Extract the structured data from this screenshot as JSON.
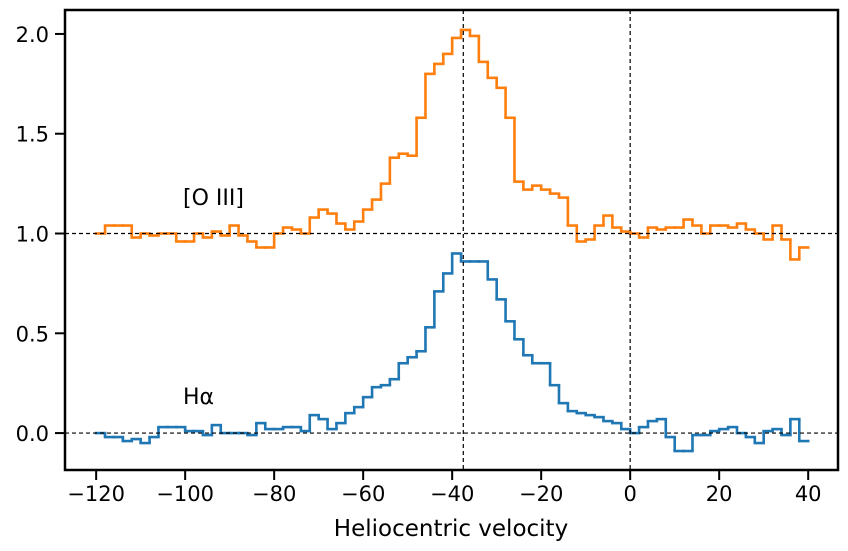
{
  "chart_data": {
    "type": "step",
    "xlabel": "Heliocentric velocity",
    "x": [
      -119,
      -117,
      -115,
      -113,
      -111,
      -109,
      -107,
      -105,
      -103,
      -101,
      -99,
      -97,
      -95,
      -93,
      -91,
      -89,
      -87,
      -85,
      -83,
      -81,
      -79,
      -77,
      -75,
      -73,
      -71,
      -69,
      -67,
      -65,
      -63,
      -61,
      -59,
      -57,
      -55,
      -53,
      -51,
      -49,
      -47,
      -45,
      -43,
      -41,
      -39,
      -37,
      -35,
      -33,
      -31,
      -29,
      -27,
      -25,
      -23,
      -21,
      -19,
      -17,
      -15,
      -13,
      -11,
      -9,
      -7,
      -5,
      -3,
      -1,
      1,
      3,
      5,
      7,
      9,
      11,
      13,
      15,
      17,
      19,
      21,
      23,
      25,
      27,
      29,
      31,
      33,
      35,
      37,
      39
    ],
    "series": [
      {
        "name": "[O III]",
        "color": "#ff7f0e",
        "values": [
          1.0,
          1.04,
          1.04,
          1.04,
          0.98,
          1.0,
          0.99,
          1.0,
          1.0,
          0.96,
          0.96,
          1.0,
          0.98,
          1.01,
          0.99,
          1.04,
          0.99,
          0.96,
          0.93,
          0.93,
          1.0,
          1.03,
          1.02,
          1.0,
          1.08,
          1.12,
          1.1,
          1.05,
          1.02,
          1.06,
          1.12,
          1.17,
          1.25,
          1.38,
          1.4,
          1.39,
          1.58,
          1.8,
          1.85,
          1.9,
          1.98,
          2.02,
          1.99,
          1.86,
          1.78,
          1.73,
          1.58,
          1.26,
          1.22,
          1.24,
          1.22,
          1.2,
          1.18,
          1.04,
          0.96,
          0.97,
          1.04,
          1.09,
          1.03,
          1.01,
          1.0,
          0.98,
          1.03,
          1.02,
          1.03,
          1.03,
          1.07,
          1.04,
          1.0,
          1.04,
          1.04,
          1.03,
          1.05,
          1.02,
          1.0,
          0.97,
          1.04,
          0.97,
          0.87,
          0.93
        ]
      },
      {
        "name": "Hα",
        "color": "#1f77b4",
        "values": [
          0.0,
          -0.02,
          -0.02,
          -0.04,
          -0.03,
          -0.05,
          -0.02,
          0.03,
          0.03,
          0.03,
          0.01,
          0.01,
          -0.01,
          0.04,
          0.0,
          0.0,
          0.0,
          -0.01,
          0.05,
          0.02,
          0.02,
          0.03,
          0.03,
          0.01,
          0.09,
          0.07,
          0.02,
          0.05,
          0.1,
          0.13,
          0.18,
          0.23,
          0.24,
          0.27,
          0.35,
          0.38,
          0.41,
          0.53,
          0.71,
          0.8,
          0.9,
          0.86,
          0.86,
          0.86,
          0.77,
          0.67,
          0.56,
          0.47,
          0.39,
          0.35,
          0.35,
          0.24,
          0.15,
          0.11,
          0.1,
          0.09,
          0.08,
          0.06,
          0.05,
          0.02,
          0.0,
          0.03,
          0.06,
          0.07,
          -0.02,
          -0.09,
          -0.09,
          -0.01,
          -0.01,
          0.01,
          0.02,
          0.03,
          0.0,
          -0.02,
          -0.05,
          0.01,
          0.02,
          -0.01,
          0.07,
          -0.04
        ]
      }
    ],
    "hlines": [
      0,
      1
    ],
    "vlines": [
      -37.5,
      0
    ],
    "xlim": [
      -127,
      46.7
    ],
    "ylim": [
      -0.185,
      2.12
    ],
    "xticks": [
      {
        "value": -120,
        "label": "−120"
      },
      {
        "value": -100,
        "label": "−100"
      },
      {
        "value": -80,
        "label": "−80"
      },
      {
        "value": -60,
        "label": "−60"
      },
      {
        "value": -40,
        "label": "−40"
      },
      {
        "value": -20,
        "label": "−20"
      },
      0,
      20,
      40
    ],
    "yticks": [
      {
        "value": 0,
        "label": "0.0"
      },
      {
        "value": 0.5,
        "label": "0.5"
      },
      {
        "value": 1,
        "label": "1.0"
      },
      {
        "value": 1.5,
        "label": "1.5"
      },
      {
        "value": 2,
        "label": "2.0"
      }
    ]
  }
}
